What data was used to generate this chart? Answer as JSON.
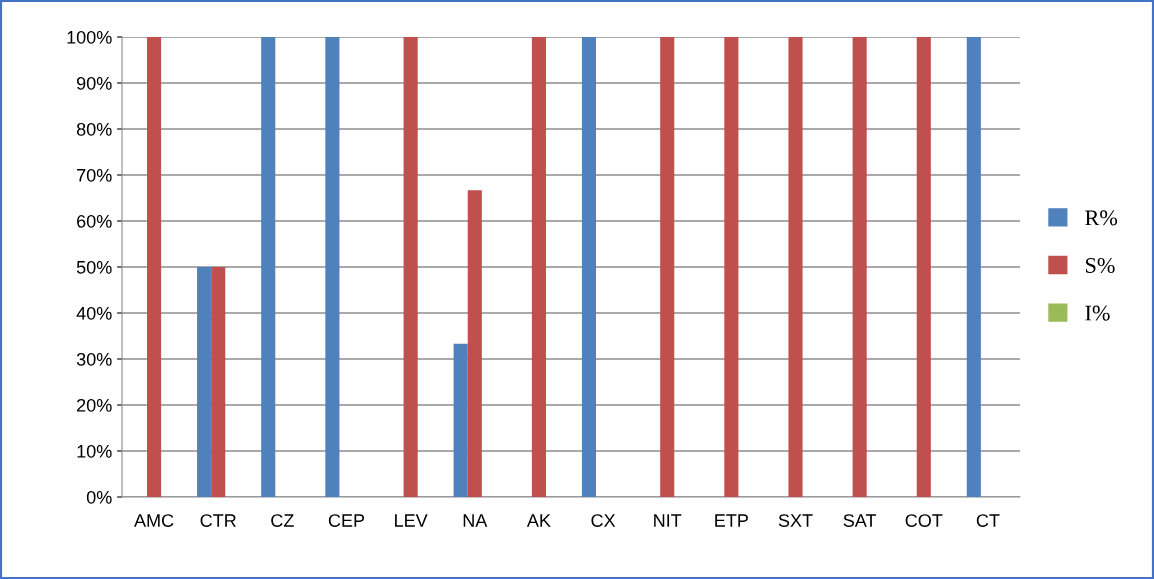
{
  "chart_data": {
    "type": "bar",
    "categories": [
      "AMC",
      "CTR",
      "CZ",
      "CEP",
      "LEV",
      "NA",
      "AK",
      "CX",
      "NIT",
      "ETP",
      "SXT",
      "SAT",
      "COT",
      "CT"
    ],
    "series": [
      {
        "name": "R%",
        "color": "#4f81bd",
        "values": [
          0,
          50,
          100,
          100,
          0,
          33.3,
          0,
          100,
          0,
          0,
          0,
          0,
          0,
          100
        ]
      },
      {
        "name": "S%",
        "color": "#c0504d",
        "values": [
          100,
          50,
          0,
          0,
          100,
          66.7,
          100,
          0,
          100,
          100,
          100,
          100,
          100,
          0
        ]
      },
      {
        "name": "I%",
        "color": "#9bbb59",
        "values": [
          0,
          0,
          0,
          0,
          0,
          0,
          0,
          0,
          0,
          0,
          0,
          0,
          0,
          0
        ]
      }
    ],
    "ylim": [
      0,
      100
    ],
    "yticks": [
      {
        "value": 0,
        "label": "0%"
      },
      {
        "value": 10,
        "label": "10%"
      },
      {
        "value": 20,
        "label": "20%"
      },
      {
        "value": 30,
        "label": "30%"
      },
      {
        "value": 40,
        "label": "40%"
      },
      {
        "value": 50,
        "label": "50%"
      },
      {
        "value": 60,
        "label": "60%"
      },
      {
        "value": 70,
        "label": "70%"
      },
      {
        "value": 80,
        "label": "80%"
      },
      {
        "value": 90,
        "label": "90%"
      },
      {
        "value": 100,
        "label": "100%"
      }
    ],
    "grid": "y",
    "legend": "right"
  }
}
